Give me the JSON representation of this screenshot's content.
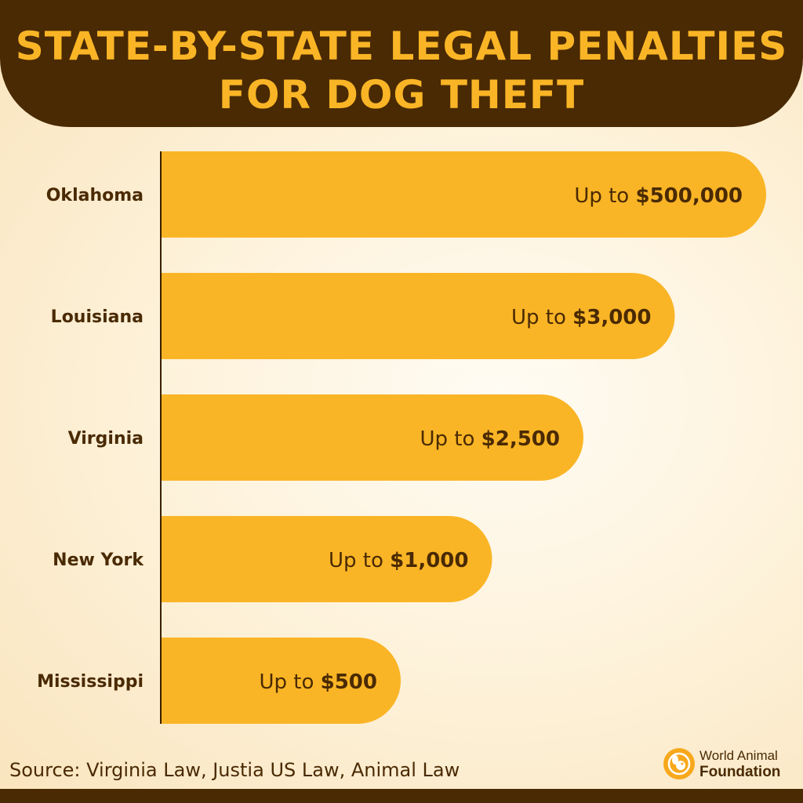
{
  "header": {
    "title_line1": "STATE-BY-STATE LEGAL PENALTIES",
    "title_line2": "FOR DOG THEFT"
  },
  "chart_data": {
    "type": "bar",
    "orientation": "horizontal",
    "categories": [
      "Oklahoma",
      "Louisiana",
      "Virginia",
      "New York",
      "Mississippi"
    ],
    "values": [
      500000,
      3000,
      2500,
      1000,
      500
    ],
    "data_labels_prefix": [
      "Up to ",
      "Up to ",
      "Up to ",
      "Up to ",
      "Up to "
    ],
    "data_labels_value": [
      "$500,000",
      "$3,000",
      "$2,500",
      "$1,000",
      "$500"
    ],
    "title": "STATE-BY-STATE LEGAL PENALTIES FOR DOG THEFT",
    "xlabel": "",
    "ylabel": "",
    "axis_scale": "non-linear (bars not proportional)",
    "grid": false,
    "legend": "none",
    "bar_color": "#fab526"
  },
  "footer": {
    "source": "Source: Virginia Law, Justia US Law, Animal Law",
    "logo_line1": "World Animal",
    "logo_line2": "Foundation"
  },
  "colors": {
    "brown": "#4a2a03",
    "gold": "#fab526",
    "logo_orange": "#f7a81b"
  },
  "icons": {
    "logo": "dog-head-icon"
  }
}
